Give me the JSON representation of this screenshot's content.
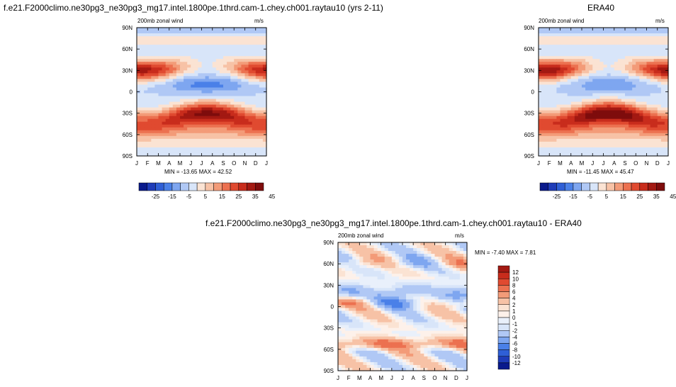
{
  "panels": {
    "model": {
      "title": "f.e21.F2000climo.ne30pg3_ne30pg3_mg17.intel.1800pe.1thrd.cam-1.chey.ch001.raytau10 (yrs 2-11)",
      "left_label": "200mb zonal wind",
      "right_label": "m/s",
      "stats": "MIN = -13.65 MAX =  42.52"
    },
    "obs": {
      "title": "ERA40",
      "left_label": "200mb zonal wind",
      "right_label": "m/s",
      "stats": "MIN = -11.45 MAX =  45.47"
    },
    "diff": {
      "title": "f.e21.F2000climo.ne30pg3_ne30pg3_mg17.intel.1800pe.1thrd.cam-1.chey.ch001.raytau10 - ERA40",
      "left_label": "200mb zonal wind",
      "right_label": "m/s",
      "stats": "MIN =  -7.40 MAX =   7.81"
    }
  },
  "chart_data": [
    {
      "type": "heatmap",
      "title": "f.e21.F2000climo.ne30pg3_ne30pg3_mg17.intel.1800pe.1thrd.cam-1.chey.ch001.raytau10 (yrs 2-11)",
      "subtitle": "200mb zonal wind",
      "units": "m/s",
      "x_tick_labels": [
        "J",
        "F",
        "M",
        "A",
        "M",
        "J",
        "J",
        "A",
        "S",
        "O",
        "N",
        "D",
        "J"
      ],
      "y_tick_labels": [
        "90N",
        "60N",
        "30N",
        "0",
        "30S",
        "60S",
        "90S"
      ],
      "ylim": [
        -90,
        90
      ],
      "min": -13.65,
      "max": 42.52,
      "colorbar_labels": [
        "-25",
        "-15",
        "-5",
        "5",
        "15",
        "25",
        "35",
        "45"
      ],
      "colors": [
        "#0a1a8c",
        "#1f3cb8",
        "#2f5fd6",
        "#4a80e8",
        "#7ea6f0",
        "#b0c8f5",
        "#d8e5f9",
        "#fbe3d3",
        "#f7c2a6",
        "#f39b78",
        "#ec7150",
        "#e04a30",
        "#c82c1c",
        "#a31912",
        "#7e0c0c"
      ]
    },
    {
      "type": "heatmap",
      "title": "ERA40",
      "subtitle": "200mb zonal wind",
      "units": "m/s",
      "x_tick_labels": [
        "J",
        "F",
        "M",
        "A",
        "M",
        "J",
        "J",
        "A",
        "S",
        "O",
        "N",
        "D",
        "J"
      ],
      "y_tick_labels": [
        "90N",
        "60N",
        "30N",
        "0",
        "30S",
        "60S",
        "90S"
      ],
      "ylim": [
        -90,
        90
      ],
      "min": -11.45,
      "max": 45.47,
      "colorbar_labels": [
        "-25",
        "-15",
        "-5",
        "5",
        "15",
        "25",
        "35",
        "45"
      ],
      "colors": [
        "#0a1a8c",
        "#1f3cb8",
        "#2f5fd6",
        "#4a80e8",
        "#7ea6f0",
        "#b0c8f5",
        "#d8e5f9",
        "#fbe3d3",
        "#f7c2a6",
        "#f39b78",
        "#ec7150",
        "#e04a30",
        "#c82c1c",
        "#a31912",
        "#7e0c0c"
      ]
    },
    {
      "type": "heatmap",
      "title": "f.e21.F2000climo.ne30pg3_ne30pg3_mg17.intel.1800pe.1thrd.cam-1.chey.ch001.raytau10 - ERA40",
      "subtitle": "200mb zonal wind",
      "units": "m/s",
      "x_tick_labels": [
        "J",
        "F",
        "M",
        "A",
        "M",
        "J",
        "J",
        "A",
        "S",
        "O",
        "N",
        "D",
        "J"
      ],
      "y_tick_labels": [
        "90N",
        "60N",
        "30N",
        "0",
        "30S",
        "60S",
        "90S"
      ],
      "ylim": [
        -90,
        90
      ],
      "min": -7.4,
      "max": 7.81,
      "colorbar_labels": [
        "12",
        "10",
        "8",
        "6",
        "4",
        "2",
        "1",
        "0",
        "-1",
        "-2",
        "-4",
        "-6",
        "-8",
        "-10",
        "-12"
      ],
      "colors": [
        "#a31912",
        "#c82c1c",
        "#e04a30",
        "#ec7150",
        "#f39b78",
        "#f7c2a6",
        "#fbe3d3",
        "#fdf1ea",
        "#e9f0fb",
        "#d8e5f9",
        "#b0c8f5",
        "#7ea6f0",
        "#4a80e8",
        "#2f5fd6",
        "#1f3cb8",
        "#0a1a8c"
      ]
    }
  ]
}
